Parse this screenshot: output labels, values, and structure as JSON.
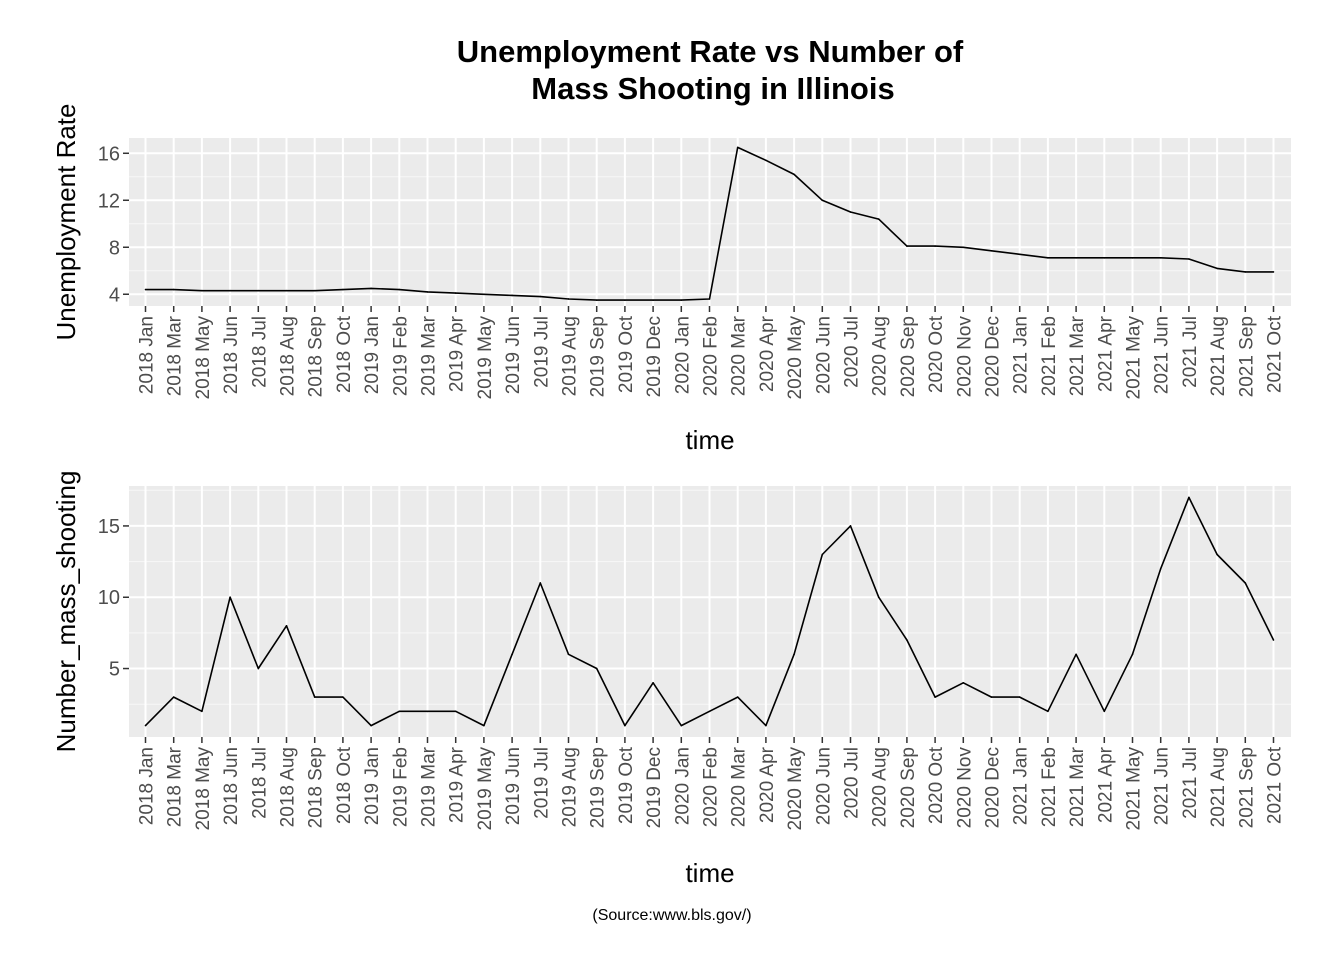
{
  "title_lines": [
    "Unemployment Rate vs Number of",
    "Mass Shooting in Illinois"
  ],
  "caption": "(Source:www.bls.gov/)",
  "chart_data": [
    {
      "type": "line",
      "title": "Unemployment Rate vs Number of Mass Shooting in Illinois",
      "xlabel": "time",
      "ylabel": "Unemployment Rate",
      "categories": [
        "2018 Jan",
        "2018 Mar",
        "2018 May",
        "2018 Jun",
        "2018 Jul",
        "2018 Aug",
        "2018 Sep",
        "2018 Oct",
        "2019 Jan",
        "2019 Feb",
        "2019 Mar",
        "2019 Apr",
        "2019 May",
        "2019 Jun",
        "2019 Jul",
        "2019 Aug",
        "2019 Sep",
        "2019 Oct",
        "2019 Dec",
        "2020 Jan",
        "2020 Feb",
        "2020 Mar",
        "2020 Apr",
        "2020 May",
        "2020 Jun",
        "2020 Jul",
        "2020 Aug",
        "2020 Sep",
        "2020 Oct",
        "2020 Nov",
        "2020 Dec",
        "2021 Jan",
        "2021 Feb",
        "2021 Mar",
        "2021 Apr",
        "2021 May",
        "2021 Jun",
        "2021 Jul",
        "2021 Aug",
        "2021 Sep",
        "2021 Oct"
      ],
      "values": [
        4.4,
        4.4,
        4.3,
        4.3,
        4.3,
        4.3,
        4.3,
        4.4,
        4.5,
        4.4,
        4.2,
        4.1,
        4.0,
        3.9,
        3.8,
        3.6,
        3.5,
        3.5,
        3.5,
        3.5,
        3.6,
        16.5,
        15.4,
        14.2,
        12.0,
        11.0,
        10.4,
        8.1,
        8.1,
        8.0,
        7.7,
        7.4,
        7.1,
        7.1,
        7.1,
        7.1,
        7.1,
        7.0,
        6.2,
        5.9,
        5.9
      ],
      "ylim": [
        3.0,
        17.3
      ],
      "yticks": [
        4,
        8,
        12,
        16
      ],
      "grid": true
    },
    {
      "type": "line",
      "xlabel": "time",
      "ylabel": "Number_mass_shooting",
      "categories": [
        "2018 Jan",
        "2018 Mar",
        "2018 May",
        "2018 Jun",
        "2018 Jul",
        "2018 Aug",
        "2018 Sep",
        "2018 Oct",
        "2019 Jan",
        "2019 Feb",
        "2019 Mar",
        "2019 Apr",
        "2019 May",
        "2019 Jun",
        "2019 Jul",
        "2019 Aug",
        "2019 Sep",
        "2019 Oct",
        "2019 Dec",
        "2020 Jan",
        "2020 Feb",
        "2020 Mar",
        "2020 Apr",
        "2020 May",
        "2020 Jun",
        "2020 Jul",
        "2020 Aug",
        "2020 Sep",
        "2020 Oct",
        "2020 Nov",
        "2020 Dec",
        "2021 Jan",
        "2021 Feb",
        "2021 Mar",
        "2021 Apr",
        "2021 May",
        "2021 Jun",
        "2021 Jul",
        "2021 Aug",
        "2021 Sep",
        "2021 Oct"
      ],
      "values": [
        1,
        3,
        2,
        10,
        5,
        8,
        3,
        3,
        1,
        2,
        2,
        2,
        1,
        6,
        11,
        6,
        5,
        1,
        4,
        1,
        2,
        3,
        1,
        6,
        13,
        15,
        10,
        7,
        3,
        4,
        3,
        3,
        2,
        6,
        2,
        6,
        12,
        17,
        13,
        11,
        7
      ],
      "ylim": [
        0.2,
        17.8
      ],
      "yticks": [
        5,
        10,
        15
      ],
      "grid": true
    }
  ]
}
